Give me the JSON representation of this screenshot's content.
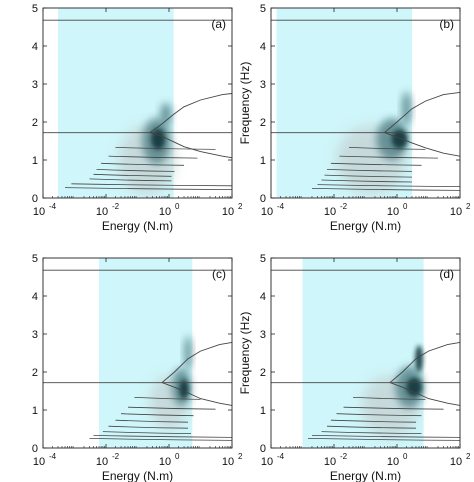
{
  "colors": {
    "band": "#cff6fa",
    "dark_energy": "#123a40",
    "mid_energy": "#4f7f85",
    "light_energy": "#c4d1d2",
    "curve": "#444444",
    "axis": "#222222"
  },
  "chart_data": [
    {
      "type": "heatmap",
      "panel_label": "(a)",
      "xlabel": "Energy (N.m)",
      "ylabel": "Frequency (Hz)",
      "xscale": "log",
      "xlim": [
        0.0001,
        100
      ],
      "ylim": [
        0,
        5
      ],
      "x_ticks": [
        0.0001,
        0.01,
        1,
        100
      ],
      "x_tick_labels": [
        "10",
        "10",
        "10",
        "10"
      ],
      "x_tick_exponents": [
        "-4",
        "-2",
        "0",
        "2"
      ],
      "y_ticks": [
        0,
        1,
        2,
        3,
        4,
        5
      ],
      "y_tick_labels": [
        "0",
        "1",
        "2",
        "3",
        "4",
        "5"
      ],
      "shaded_energy_band": [
        0.0003,
        1.4
      ],
      "horizontal_lines_hz": [
        4.68,
        1.72
      ],
      "branch_curve": {
        "energy": [
          0.25,
          0.6,
          1.4,
          3,
          10,
          50,
          100
        ],
        "lower_hz": [
          1.72,
          1.62,
          1.48,
          1.35,
          1.22,
          1.1,
          1.06
        ],
        "upper_hz": [
          1.72,
          1.95,
          2.2,
          2.4,
          2.58,
          2.72,
          2.75
        ]
      },
      "lower_branches": [
        {
          "hz": 1.28,
          "e_start": 0.02,
          "e_end": 30
        },
        {
          "hz": 1.05,
          "e_start": 0.012,
          "e_end": 8
        },
        {
          "hz": 0.86,
          "e_start": 0.007,
          "e_end": 3
        },
        {
          "hz": 0.7,
          "e_start": 0.005,
          "e_end": 1.5
        },
        {
          "hz": 0.57,
          "e_start": 0.004,
          "e_end": 1.2
        },
        {
          "hz": 0.45,
          "e_start": 0.003,
          "e_end": 1.2
        },
        {
          "hz": 0.32,
          "e_start": 0.0008,
          "e_end": 100
        },
        {
          "hz": 0.22,
          "e_start": 0.0005,
          "e_end": 100
        }
      ],
      "energy_regions": [
        {
          "level": "light",
          "energy": 0.2,
          "hz": 1.0,
          "spread_dec": 0.9,
          "spread_hz": 0.9
        },
        {
          "level": "mid",
          "energy": 0.4,
          "hz": 1.5,
          "spread_dec": 0.45,
          "spread_hz": 0.6
        },
        {
          "level": "dark",
          "energy": 0.45,
          "hz": 1.55,
          "spread_dec": 0.22,
          "spread_hz": 0.28
        },
        {
          "level": "mid",
          "energy": 0.8,
          "hz": 2.2,
          "spread_dec": 0.18,
          "spread_hz": 0.3
        }
      ]
    },
    {
      "type": "heatmap",
      "panel_label": "(b)",
      "xlabel": "Energy (N.m)",
      "ylabel": "Frequency (Hz)",
      "xscale": "log",
      "xlim": [
        0.0001,
        100
      ],
      "ylim": [
        0,
        5
      ],
      "x_ticks": [
        0.0001,
        0.01,
        1,
        100
      ],
      "x_tick_labels": [
        "10",
        "10",
        "10",
        "10"
      ],
      "x_tick_exponents": [
        "-4",
        "-2",
        "0",
        "2"
      ],
      "y_ticks": [
        0,
        1,
        2,
        3,
        4,
        5
      ],
      "y_tick_labels": [
        "0",
        "1",
        "2",
        "3",
        "4",
        "5"
      ],
      "shaded_energy_band": [
        0.00015,
        3.0
      ],
      "horizontal_lines_hz": [
        4.68,
        1.72
      ],
      "branch_curve": {
        "energy": [
          0.4,
          1.0,
          3,
          8,
          30,
          100
        ],
        "lower_hz": [
          1.72,
          1.6,
          1.45,
          1.32,
          1.18,
          1.1
        ],
        "upper_hz": [
          1.72,
          2.0,
          2.35,
          2.55,
          2.72,
          2.78
        ]
      },
      "lower_branches": [
        {
          "hz": 1.28,
          "e_start": 0.03,
          "e_end": 8
        },
        {
          "hz": 1.05,
          "e_start": 0.015,
          "e_end": 20
        },
        {
          "hz": 0.86,
          "e_start": 0.008,
          "e_end": 6
        },
        {
          "hz": 0.7,
          "e_start": 0.006,
          "e_end": 3
        },
        {
          "hz": 0.55,
          "e_start": 0.005,
          "e_end": 3
        },
        {
          "hz": 0.42,
          "e_start": 0.004,
          "e_end": 3
        },
        {
          "hz": 0.3,
          "e_start": 0.003,
          "e_end": 100
        },
        {
          "hz": 0.2,
          "e_start": 0.002,
          "e_end": 100
        }
      ],
      "energy_regions": [
        {
          "level": "light",
          "energy": 0.15,
          "hz": 1.0,
          "spread_dec": 1.1,
          "spread_hz": 0.9
        },
        {
          "level": "mid",
          "energy": 0.7,
          "hz": 1.55,
          "spread_dec": 0.5,
          "spread_hz": 0.55
        },
        {
          "level": "dark",
          "energy": 1.2,
          "hz": 1.55,
          "spread_dec": 0.25,
          "spread_hz": 0.25
        },
        {
          "level": "mid",
          "energy": 2.0,
          "hz": 2.35,
          "spread_dec": 0.15,
          "spread_hz": 0.45
        }
      ]
    },
    {
      "type": "heatmap",
      "panel_label": "(c)",
      "xlabel": "Energy (N.m)",
      "ylabel": "Frequency (Hz)",
      "xscale": "log",
      "xlim": [
        0.0001,
        100
      ],
      "ylim": [
        0,
        5
      ],
      "x_ticks": [
        0.0001,
        0.01,
        1,
        100
      ],
      "x_tick_labels": [
        "10",
        "10",
        "10",
        "10"
      ],
      "x_tick_exponents": [
        "-4",
        "-2",
        "0",
        "2"
      ],
      "y_ticks": [
        0,
        1,
        2,
        3,
        4,
        5
      ],
      "y_tick_labels": [
        "0",
        "1",
        "2",
        "3",
        "4",
        "5"
      ],
      "shaded_energy_band": [
        0.006,
        5.5
      ],
      "horizontal_lines_hz": [
        4.68,
        1.72
      ],
      "branch_curve": {
        "energy": [
          0.6,
          1.5,
          4,
          10,
          40,
          100
        ],
        "lower_hz": [
          1.72,
          1.6,
          1.45,
          1.3,
          1.18,
          1.12
        ],
        "upper_hz": [
          1.72,
          2.0,
          2.35,
          2.55,
          2.72,
          2.78
        ]
      },
      "lower_branches": [
        {
          "hz": 1.28,
          "e_start": 0.08,
          "e_end": 10
        },
        {
          "hz": 1.02,
          "e_start": 0.05,
          "e_end": 30
        },
        {
          "hz": 0.85,
          "e_start": 0.03,
          "e_end": 6
        },
        {
          "hz": 0.68,
          "e_start": 0.02,
          "e_end": 4
        },
        {
          "hz": 0.52,
          "e_start": 0.012,
          "e_end": 4
        },
        {
          "hz": 0.38,
          "e_start": 0.008,
          "e_end": 5
        },
        {
          "hz": 0.28,
          "e_start": 0.004,
          "e_end": 100
        },
        {
          "hz": 0.2,
          "e_start": 0.003,
          "e_end": 100
        }
      ],
      "energy_regions": [
        {
          "level": "light",
          "energy": 1.0,
          "hz": 1.2,
          "spread_dec": 0.6,
          "spread_hz": 0.7
        },
        {
          "level": "mid",
          "energy": 2.5,
          "hz": 1.6,
          "spread_dec": 0.3,
          "spread_hz": 0.5
        },
        {
          "level": "dark",
          "energy": 3.0,
          "hz": 1.55,
          "spread_dec": 0.15,
          "spread_hz": 0.25
        },
        {
          "level": "mid",
          "energy": 4.0,
          "hz": 2.5,
          "spread_dec": 0.12,
          "spread_hz": 0.45
        }
      ]
    },
    {
      "type": "heatmap",
      "panel_label": "(d)",
      "xlabel": "Energy (N.m)",
      "ylabel": "Frequency (Hz)",
      "xscale": "log",
      "xlim": [
        0.0001,
        100
      ],
      "ylim": [
        0,
        5
      ],
      "x_ticks": [
        0.0001,
        0.01,
        1,
        100
      ],
      "x_tick_labels": [
        "10",
        "10",
        "10",
        "10"
      ],
      "x_tick_exponents": [
        "-4",
        "-2",
        "0",
        "2"
      ],
      "y_ticks": [
        0,
        1,
        2,
        3,
        4,
        5
      ],
      "y_tick_labels": [
        "0",
        "1",
        "2",
        "3",
        "4",
        "5"
      ],
      "shaded_energy_band": [
        0.001,
        7.0
      ],
      "horizontal_lines_hz": [
        4.68,
        1.72
      ],
      "branch_curve": {
        "energy": [
          0.6,
          1.5,
          4,
          10,
          40,
          100
        ],
        "lower_hz": [
          1.72,
          1.6,
          1.45,
          1.3,
          1.18,
          1.12
        ],
        "upper_hz": [
          1.72,
          2.0,
          2.35,
          2.55,
          2.72,
          2.78
        ]
      },
      "lower_branches": [
        {
          "hz": 1.28,
          "e_start": 0.04,
          "e_end": 8
        },
        {
          "hz": 1.02,
          "e_start": 0.02,
          "e_end": 30
        },
        {
          "hz": 0.85,
          "e_start": 0.012,
          "e_end": 6
        },
        {
          "hz": 0.68,
          "e_start": 0.008,
          "e_end": 4
        },
        {
          "hz": 0.52,
          "e_start": 0.006,
          "e_end": 4
        },
        {
          "hz": 0.38,
          "e_start": 0.004,
          "e_end": 6
        },
        {
          "hz": 0.28,
          "e_start": 0.002,
          "e_end": 100
        },
        {
          "hz": 0.2,
          "e_start": 0.0015,
          "e_end": 100
        }
      ],
      "energy_regions": [
        {
          "level": "light",
          "energy": 0.6,
          "hz": 1.1,
          "spread_dec": 0.9,
          "spread_hz": 0.8
        },
        {
          "level": "mid",
          "energy": 2.5,
          "hz": 1.6,
          "spread_dec": 0.45,
          "spread_hz": 0.55
        },
        {
          "level": "dark",
          "energy": 3.5,
          "hz": 1.6,
          "spread_dec": 0.25,
          "spread_hz": 0.25
        },
        {
          "level": "dark",
          "energy": 5.0,
          "hz": 2.35,
          "spread_dec": 0.12,
          "spread_hz": 0.35
        }
      ]
    }
  ]
}
